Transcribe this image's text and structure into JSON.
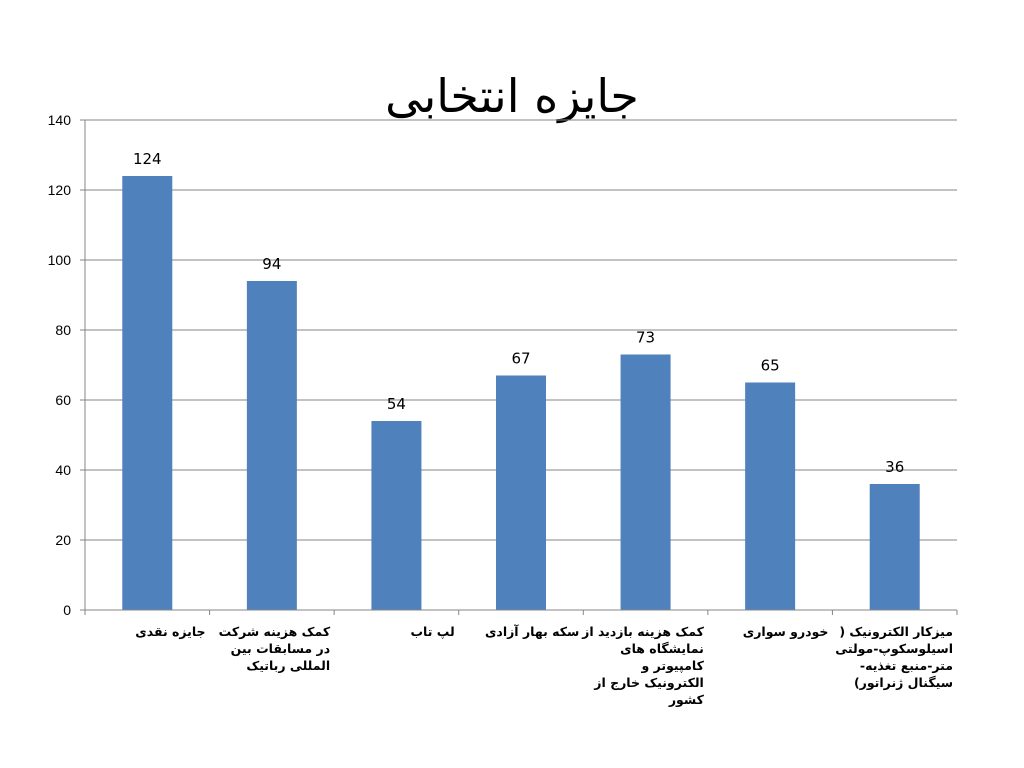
{
  "chart_data": {
    "type": "bar",
    "title": "جایزه انتخابی",
    "categories": [
      "جایزه نقدی",
      "کمک هزینه شرکت در مسابقات بین المللی رباتیک",
      "لپ تاب",
      "سکه بهار آزادی",
      "کمک هزینه بازدید از نمایشگاه های کامپیوتر و الکترونیک خارج از کشور",
      "خودرو سواری",
      "میزکار الکترونیک ( اسیلوسکوپ-مولتی متر-منبع تغذیه-سیگنال ژنراتور)"
    ],
    "series": [
      {
        "values": [
          124,
          94,
          54,
          67,
          73,
          65,
          36
        ]
      }
    ],
    "ylim": [
      0,
      140
    ],
    "yticks": [
      0,
      20,
      40,
      60,
      80,
      100,
      120,
      140
    ],
    "xlabel": "",
    "ylabel": "",
    "grid": true,
    "data_labels": true,
    "bar_color": "#4F81BD"
  }
}
